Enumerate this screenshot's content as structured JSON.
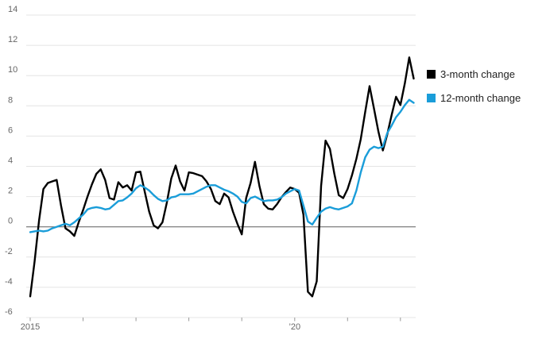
{
  "chart_data": {
    "type": "line",
    "title": "",
    "x_axis": {
      "unit": "month",
      "start": "2015-01",
      "end": "2022-04",
      "ticks": [
        {
          "year": 2015,
          "label": "2015"
        },
        {
          "year": 2016,
          "label": ""
        },
        {
          "year": 2017,
          "label": ""
        },
        {
          "year": 2018,
          "label": ""
        },
        {
          "year": 2019,
          "label": ""
        },
        {
          "year": 2020,
          "label": "’20"
        },
        {
          "year": 2021,
          "label": ""
        },
        {
          "year": 2022,
          "label": ""
        }
      ]
    },
    "y_axis": {
      "min": -6,
      "max": 14,
      "tick_step": 2,
      "ticks": [
        {
          "value": -6,
          "label": "-6"
        },
        {
          "value": -4,
          "label": "-4"
        },
        {
          "value": -2,
          "label": "-2"
        },
        {
          "value": 0,
          "label": "0"
        },
        {
          "value": 2,
          "label": "2"
        },
        {
          "value": 4,
          "label": "4"
        },
        {
          "value": 6,
          "label": "6"
        },
        {
          "value": 8,
          "label": "8"
        },
        {
          "value": 10,
          "label": "10"
        },
        {
          "value": 12,
          "label": "12"
        },
        {
          "value": 14,
          "label": "14"
        }
      ]
    },
    "grid": true,
    "zero_line": true,
    "legend_position": "right",
    "series": [
      {
        "name": "3-month change",
        "color": "#000000",
        "values": [
          -4.6,
          -2.3,
          0.4,
          2.5,
          2.9,
          3.0,
          3.1,
          1.4,
          -0.1,
          -0.3,
          -0.6,
          0.3,
          1.1,
          2.0,
          2.8,
          3.5,
          3.8,
          3.1,
          1.9,
          1.8,
          2.95,
          2.6,
          2.75,
          2.4,
          3.6,
          3.65,
          2.3,
          1.0,
          0.1,
          -0.1,
          0.3,
          1.6,
          3.2,
          4.05,
          3.0,
          2.4,
          3.6,
          3.55,
          3.45,
          3.35,
          3.0,
          2.5,
          1.7,
          1.5,
          2.2,
          1.95,
          1.0,
          0.2,
          -0.5,
          1.9,
          2.9,
          4.3,
          2.7,
          1.5,
          1.2,
          1.15,
          1.5,
          1.95,
          2.3,
          2.6,
          2.5,
          2.25,
          0.8,
          -4.3,
          -4.6,
          -3.6,
          2.7,
          5.7,
          5.15,
          3.5,
          2.1,
          1.9,
          2.5,
          3.4,
          4.5,
          5.8,
          7.6,
          9.3,
          7.8,
          6.3,
          5.05,
          6.1,
          7.4,
          8.6,
          8.05,
          9.5,
          11.2,
          9.8
        ]
      },
      {
        "name": "12-month change",
        "color": "#1a9dd9",
        "values": [
          -0.35,
          -0.3,
          -0.25,
          -0.3,
          -0.25,
          -0.1,
          0.0,
          0.1,
          0.2,
          0.1,
          0.3,
          0.55,
          0.8,
          1.15,
          1.25,
          1.3,
          1.25,
          1.15,
          1.2,
          1.45,
          1.7,
          1.75,
          1.95,
          2.2,
          2.55,
          2.75,
          2.6,
          2.4,
          2.1,
          1.85,
          1.7,
          1.75,
          1.95,
          2.0,
          2.15,
          2.15,
          2.15,
          2.2,
          2.35,
          2.5,
          2.65,
          2.75,
          2.75,
          2.6,
          2.45,
          2.35,
          2.2,
          2.0,
          1.65,
          1.55,
          1.9,
          2.0,
          1.85,
          1.7,
          1.75,
          1.75,
          1.8,
          1.95,
          2.2,
          2.35,
          2.5,
          2.4,
          1.4,
          0.35,
          0.15,
          0.6,
          1.0,
          1.2,
          1.3,
          1.2,
          1.15,
          1.25,
          1.35,
          1.55,
          2.4,
          3.6,
          4.6,
          5.1,
          5.3,
          5.2,
          5.3,
          6.2,
          6.7,
          7.25,
          7.6,
          8.05,
          8.4,
          8.2
        ]
      }
    ]
  },
  "colors": {
    "background": "#ffffff",
    "grid": "#e4e4e4",
    "zero_line": "#5f5f5f",
    "axis_text": "#666666",
    "tick_mark": "#999999",
    "legend_text": "#222222"
  }
}
